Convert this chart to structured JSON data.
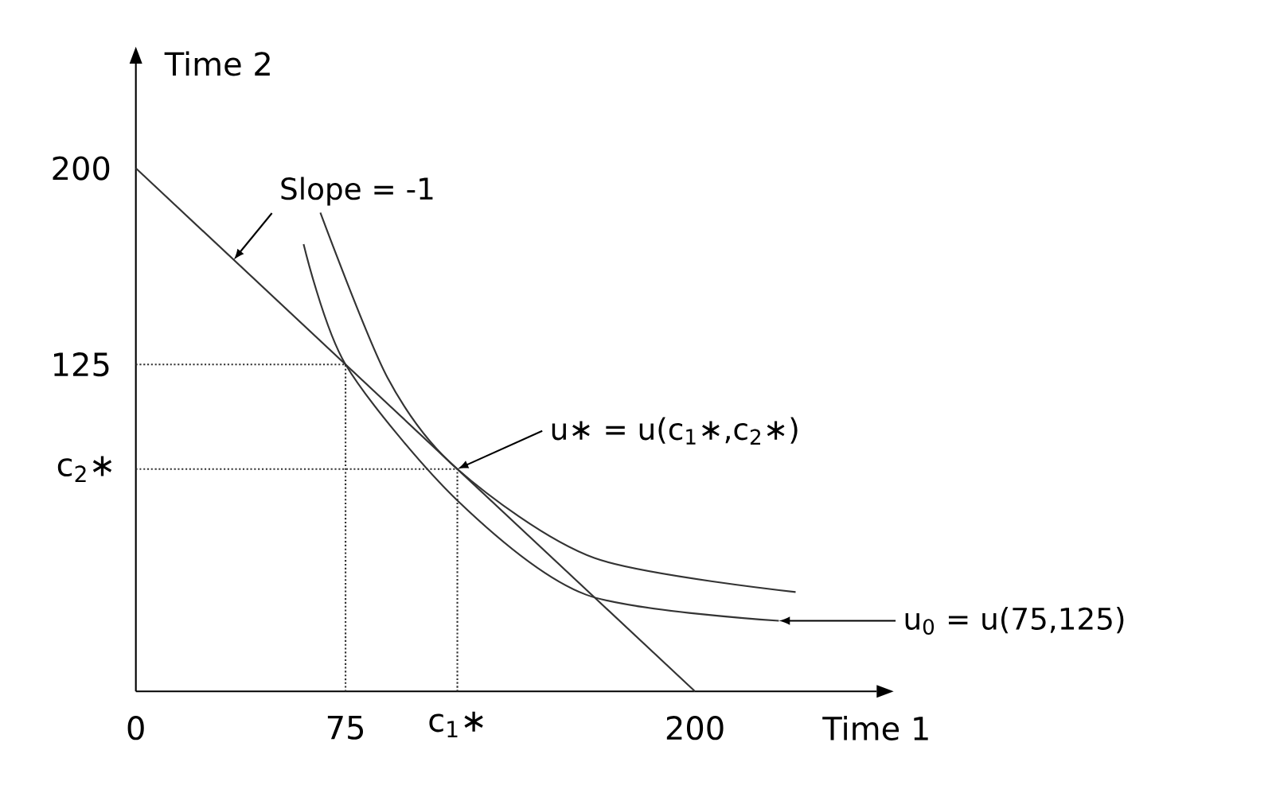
{
  "chart_data": {
    "type": "line",
    "xlabel": "Time 1",
    "ylabel": "Time 2",
    "xlim": [
      0,
      265
    ],
    "ylim": [
      0,
      240
    ],
    "xticks": [
      0,
      75,
      200
    ],
    "yticks": [
      125,
      200
    ],
    "series": [
      {
        "color": "#333333",
        "line_style": "solid",
        "x": [
          0,
          200
        ],
        "values": [
          200,
          0
        ]
      },
      {
        "color": "#333333",
        "line_style": "solid",
        "x": [
          60,
          75,
          115,
          161,
          230
        ],
        "values": [
          171,
          125,
          73,
          37,
          27
        ]
      },
      {
        "color": "#333333",
        "line_style": "solid",
        "x": [
          66,
          90,
          115,
          164,
          236
        ],
        "values": [
          183,
          120,
          85,
          51,
          38
        ]
      },
      {
        "color": "#333333",
        "line_style": "dotted",
        "x": [
          0,
          75
        ],
        "values": [
          125,
          125
        ]
      },
      {
        "color": "#333333",
        "line_style": "dotted",
        "x": [
          75,
          75
        ],
        "values": [
          0,
          125
        ]
      },
      {
        "color": "#333333",
        "line_style": "dotted",
        "x": [
          0,
          115
        ],
        "values": [
          85,
          85
        ]
      },
      {
        "color": "#333333",
        "line_style": "dotted",
        "x": [
          115,
          115
        ],
        "values": [
          0,
          85
        ]
      }
    ],
    "annotations": [
      {
        "text": "Slope = -1",
        "x": 35,
        "y": 165
      },
      {
        "text": "u∗ = u(c$_{1}$∗,c$_{2}$∗)",
        "x": 115,
        "y": 85
      },
      {
        "text": "u$_{0}$ = u(75,125)",
        "x": 230,
        "y": 27
      },
      {
        "text": "c$_{1}$∗",
        "x": 115,
        "y": 0
      },
      {
        "text": "c$_{2}$∗",
        "x": 0,
        "y": 85
      }
    ]
  }
}
